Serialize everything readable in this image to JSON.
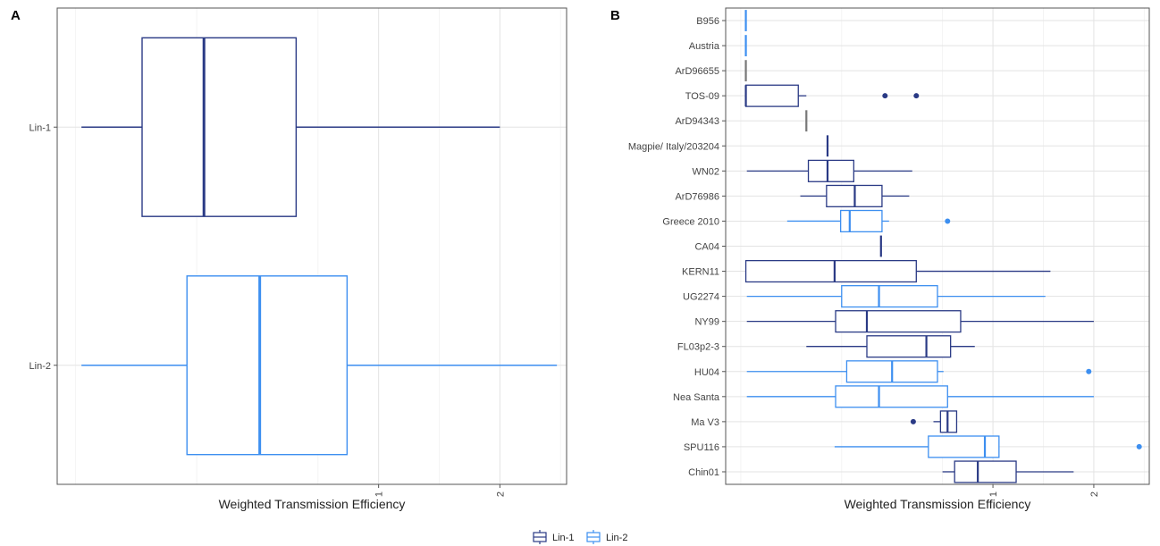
{
  "colors": {
    "Lin-1": "#2a3a85",
    "Lin-2": "#3d8ff0",
    "unassigned": "#777777"
  },
  "legend": {
    "items": [
      "Lin-1",
      "Lin-2"
    ],
    "placement": "bottom"
  },
  "chart_data": [
    {
      "panel": "A",
      "type": "boxplot",
      "orientation": "horizontal",
      "xlabel": "Weighted Transmission Efficiency",
      "ylabel": "",
      "x_ticks": [
        1,
        2
      ],
      "x_tick_labels": [
        "1",
        "2"
      ],
      "xlim": [
        -1.65,
        2.55
      ],
      "grid": true,
      "categories": [
        "Lin-1",
        "Lin-2"
      ],
      "boxes": [
        {
          "label": "Lin-1",
          "group": "Lin-1",
          "whisker_low": -1.45,
          "q1": -0.95,
          "median": -0.44,
          "q3": 0.32,
          "whisker_high": 2.0,
          "outliers": []
        },
        {
          "label": "Lin-2",
          "group": "Lin-2",
          "whisker_low": -1.45,
          "q1": -0.58,
          "median": 0.02,
          "q3": 0.74,
          "whisker_high": 2.47,
          "outliers": []
        }
      ]
    },
    {
      "panel": "B",
      "type": "boxplot",
      "orientation": "horizontal",
      "xlabel": "Weighted Transmission Efficiency",
      "ylabel": "",
      "x_ticks": [
        1,
        2
      ],
      "x_tick_labels": [
        "1",
        "2"
      ],
      "xlim": [
        -1.65,
        2.55
      ],
      "grid": true,
      "categories": [
        "B956",
        "Austria",
        "ArD96655",
        "TOS-09",
        "ArD94343",
        "Magpie/ Italy/203204",
        "WN02",
        "ArD76986",
        "Greece 2010",
        "CA04",
        "KERN11",
        "UG2274",
        "NY99",
        "FL03p2-3",
        "HU04",
        "Nea Santa",
        "Ma V3",
        "SPU116",
        "Chin01"
      ],
      "boxes": [
        {
          "label": "B956",
          "group": "Lin-2",
          "whisker_low": -1.45,
          "q1": -1.45,
          "median": -1.45,
          "q3": -1.45,
          "whisker_high": -1.45,
          "outliers": []
        },
        {
          "label": "Austria",
          "group": "Lin-2",
          "whisker_low": -1.45,
          "q1": -1.45,
          "median": -1.45,
          "q3": -1.45,
          "whisker_high": -1.45,
          "outliers": []
        },
        {
          "label": "ArD96655",
          "group": "unassigned",
          "whisker_low": -1.45,
          "q1": -1.45,
          "median": -1.45,
          "q3": -1.45,
          "whisker_high": -1.45,
          "outliers": []
        },
        {
          "label": "TOS-09",
          "group": "Lin-1",
          "whisker_low": -1.45,
          "q1": -1.45,
          "median": -1.45,
          "q3": -0.93,
          "whisker_high": -0.85,
          "outliers": [
            -0.07,
            0.24
          ]
        },
        {
          "label": "ArD94343",
          "group": "unassigned",
          "whisker_low": -0.85,
          "q1": -0.85,
          "median": -0.85,
          "q3": -0.85,
          "whisker_high": -0.85,
          "outliers": []
        },
        {
          "label": "Magpie/ Italy/203204",
          "group": "Lin-1",
          "whisker_low": -0.64,
          "q1": -0.64,
          "median": -0.64,
          "q3": -0.64,
          "whisker_high": -0.64,
          "outliers": []
        },
        {
          "label": "WN02",
          "group": "Lin-1",
          "whisker_low": -1.44,
          "q1": -0.83,
          "median": -0.64,
          "q3": -0.38,
          "whisker_high": 0.2,
          "outliers": []
        },
        {
          "label": "ArD76986",
          "group": "Lin-1",
          "whisker_low": -0.91,
          "q1": -0.65,
          "median": -0.37,
          "q3": -0.1,
          "whisker_high": 0.17,
          "outliers": []
        },
        {
          "label": "Greece 2010",
          "group": "Lin-2",
          "whisker_low": -1.04,
          "q1": -0.51,
          "median": -0.42,
          "q3": -0.1,
          "whisker_high": -0.03,
          "outliers": [
            0.55
          ]
        },
        {
          "label": "CA04",
          "group": "Lin-1",
          "whisker_low": -0.11,
          "q1": -0.11,
          "median": -0.11,
          "q3": -0.11,
          "whisker_high": -0.11,
          "outliers": []
        },
        {
          "label": "KERN11",
          "group": "Lin-1",
          "whisker_low": -1.45,
          "q1": -1.45,
          "median": -0.57,
          "q3": 0.24,
          "whisker_high": 1.57,
          "outliers": []
        },
        {
          "label": "UG2274",
          "group": "Lin-2",
          "whisker_low": -1.44,
          "q1": -0.5,
          "median": -0.13,
          "q3": 0.45,
          "whisker_high": 1.52,
          "outliers": []
        },
        {
          "label": "NY99",
          "group": "Lin-1",
          "whisker_low": -1.44,
          "q1": -0.56,
          "median": -0.25,
          "q3": 0.68,
          "whisker_high": 2.0,
          "outliers": []
        },
        {
          "label": "FL03p2-3",
          "group": "Lin-1",
          "whisker_low": -0.85,
          "q1": -0.25,
          "median": 0.34,
          "q3": 0.58,
          "whisker_high": 0.82,
          "outliers": []
        },
        {
          "label": "HU04",
          "group": "Lin-2",
          "whisker_low": -1.44,
          "q1": -0.45,
          "median": 0.0,
          "q3": 0.45,
          "whisker_high": 0.51,
          "outliers": [
            1.95
          ]
        },
        {
          "label": "Nea Santa",
          "group": "Lin-2",
          "whisker_low": -1.44,
          "q1": -0.56,
          "median": -0.13,
          "q3": 0.55,
          "whisker_high": 2.0,
          "outliers": []
        },
        {
          "label": "Ma V3",
          "group": "Lin-1",
          "whisker_low": 0.41,
          "q1": 0.48,
          "median": 0.55,
          "q3": 0.64,
          "whisker_high": 0.64,
          "outliers": [
            0.21
          ]
        },
        {
          "label": "SPU116",
          "group": "Lin-2",
          "whisker_low": -0.57,
          "q1": 0.36,
          "median": 0.92,
          "q3": 1.06,
          "whisker_high": 1.06,
          "outliers": [
            2.45
          ]
        },
        {
          "label": "Chin01",
          "group": "Lin-1",
          "whisker_low": 0.5,
          "q1": 0.62,
          "median": 0.85,
          "q3": 1.23,
          "whisker_high": 1.8,
          "outliers": []
        }
      ]
    }
  ]
}
